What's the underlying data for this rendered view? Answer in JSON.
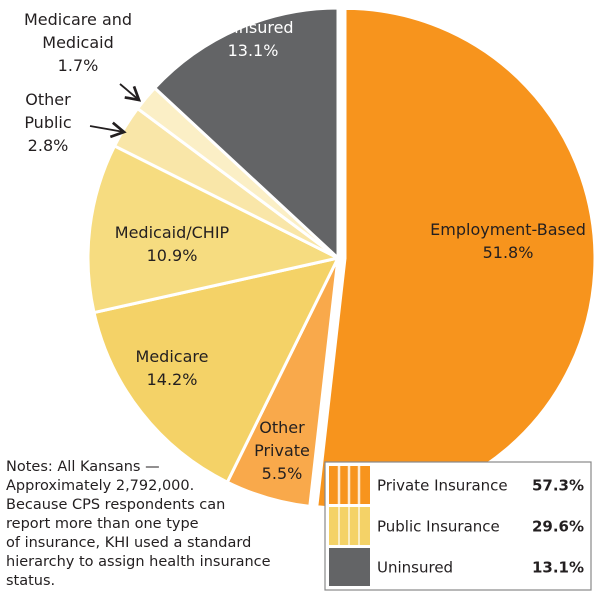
{
  "chart_data": {
    "type": "pie",
    "categories": [
      "Employment-Based",
      "Other Private",
      "Medicare",
      "Medicaid/CHIP",
      "Other Public",
      "Medicare and Medicaid",
      "Uninsured"
    ],
    "values": [
      51.8,
      5.5,
      14.2,
      10.9,
      2.8,
      1.7,
      13.1
    ],
    "value_labels": [
      "51.8%",
      "5.5%",
      "14.2%",
      "10.9%",
      "2.8%",
      "1.7%",
      "13.1%"
    ],
    "colors": [
      "#f7941d",
      "#f9a94b",
      "#f4d267",
      "#f6dc80",
      "#f9e6a8",
      "#fbefc6",
      "#636466"
    ],
    "legend": [
      {
        "name": "Private Insurance",
        "value": 57.3,
        "value_label": "57.3%",
        "color": "#f7941d"
      },
      {
        "name": "Public Insurance",
        "value": 29.6,
        "value_label": "29.6%",
        "color": "#f4d267"
      },
      {
        "name": "Uninsured",
        "value": 13.1,
        "value_label": "13.1%",
        "color": "#636466"
      }
    ],
    "notes": [
      "Notes: All Kansans —",
      "Approximately 2,792,000.",
      "Because CPS respondents can",
      "report more than one type",
      "of insurance, KHI used a standard",
      "hierarchy to assign health insurance",
      "status."
    ]
  }
}
